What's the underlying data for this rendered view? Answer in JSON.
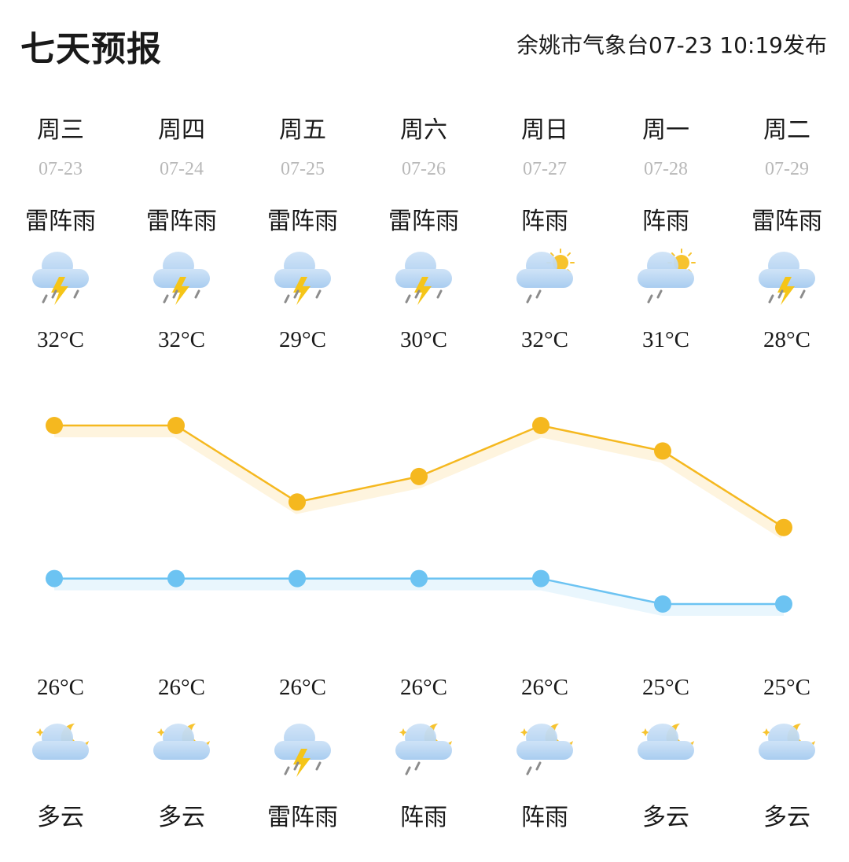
{
  "header": {
    "title": "七天预报",
    "publisher": "余姚市气象台07-23 10:19发布"
  },
  "days": [
    {
      "weekday": "周三",
      "date": "07-23",
      "day_desc": "雷阵雨",
      "day_icon": "thunderstorm-icon",
      "hi": "32°C",
      "lo": "26°C",
      "night_icon": "partly-cloudy-night-icon",
      "night_desc": "多云"
    },
    {
      "weekday": "周四",
      "date": "07-24",
      "day_desc": "雷阵雨",
      "day_icon": "thunderstorm-icon",
      "hi": "32°C",
      "lo": "26°C",
      "night_icon": "partly-cloudy-night-icon",
      "night_desc": "多云"
    },
    {
      "weekday": "周五",
      "date": "07-25",
      "day_desc": "雷阵雨",
      "day_icon": "thunderstorm-icon",
      "hi": "29°C",
      "lo": "26°C",
      "night_icon": "thunderstorm-icon",
      "night_desc": "雷阵雨"
    },
    {
      "weekday": "周六",
      "date": "07-26",
      "day_desc": "雷阵雨",
      "day_icon": "thunderstorm-icon",
      "hi": "30°C",
      "lo": "26°C",
      "night_icon": "shower-night-icon",
      "night_desc": "阵雨"
    },
    {
      "weekday": "周日",
      "date": "07-27",
      "day_desc": "阵雨",
      "day_icon": "shower-day-icon",
      "hi": "32°C",
      "lo": "26°C",
      "night_icon": "shower-night-icon",
      "night_desc": "阵雨"
    },
    {
      "weekday": "周一",
      "date": "07-28",
      "day_desc": "阵雨",
      "day_icon": "shower-day-icon",
      "hi": "31°C",
      "lo": "25°C",
      "night_icon": "partly-cloudy-night-icon",
      "night_desc": "多云"
    },
    {
      "weekday": "周二",
      "date": "07-29",
      "day_desc": "雷阵雨",
      "day_icon": "thunderstorm-icon",
      "hi": "28°C",
      "lo": "25°C",
      "night_icon": "partly-cloudy-night-icon",
      "night_desc": "多云"
    }
  ],
  "chart_data": {
    "type": "line",
    "categories": [
      "07-23",
      "07-24",
      "07-25",
      "07-26",
      "07-27",
      "07-28",
      "07-29"
    ],
    "series": [
      {
        "values": [
          32,
          32,
          29,
          30,
          32,
          31,
          28
        ],
        "color": "#f5b81f"
      },
      {
        "values": [
          26,
          26,
          26,
          26,
          26,
          25,
          25
        ],
        "color": "#6cc3f2"
      }
    ]
  },
  "colors": {
    "high_line": "#f5b81f",
    "low_line": "#6cc3f2",
    "date_text": "#b8b8b8",
    "bolt": "#f5c518",
    "sun": "#f7c32e",
    "moon": "#f7c32e",
    "cloud": "#a9cdf0"
  }
}
